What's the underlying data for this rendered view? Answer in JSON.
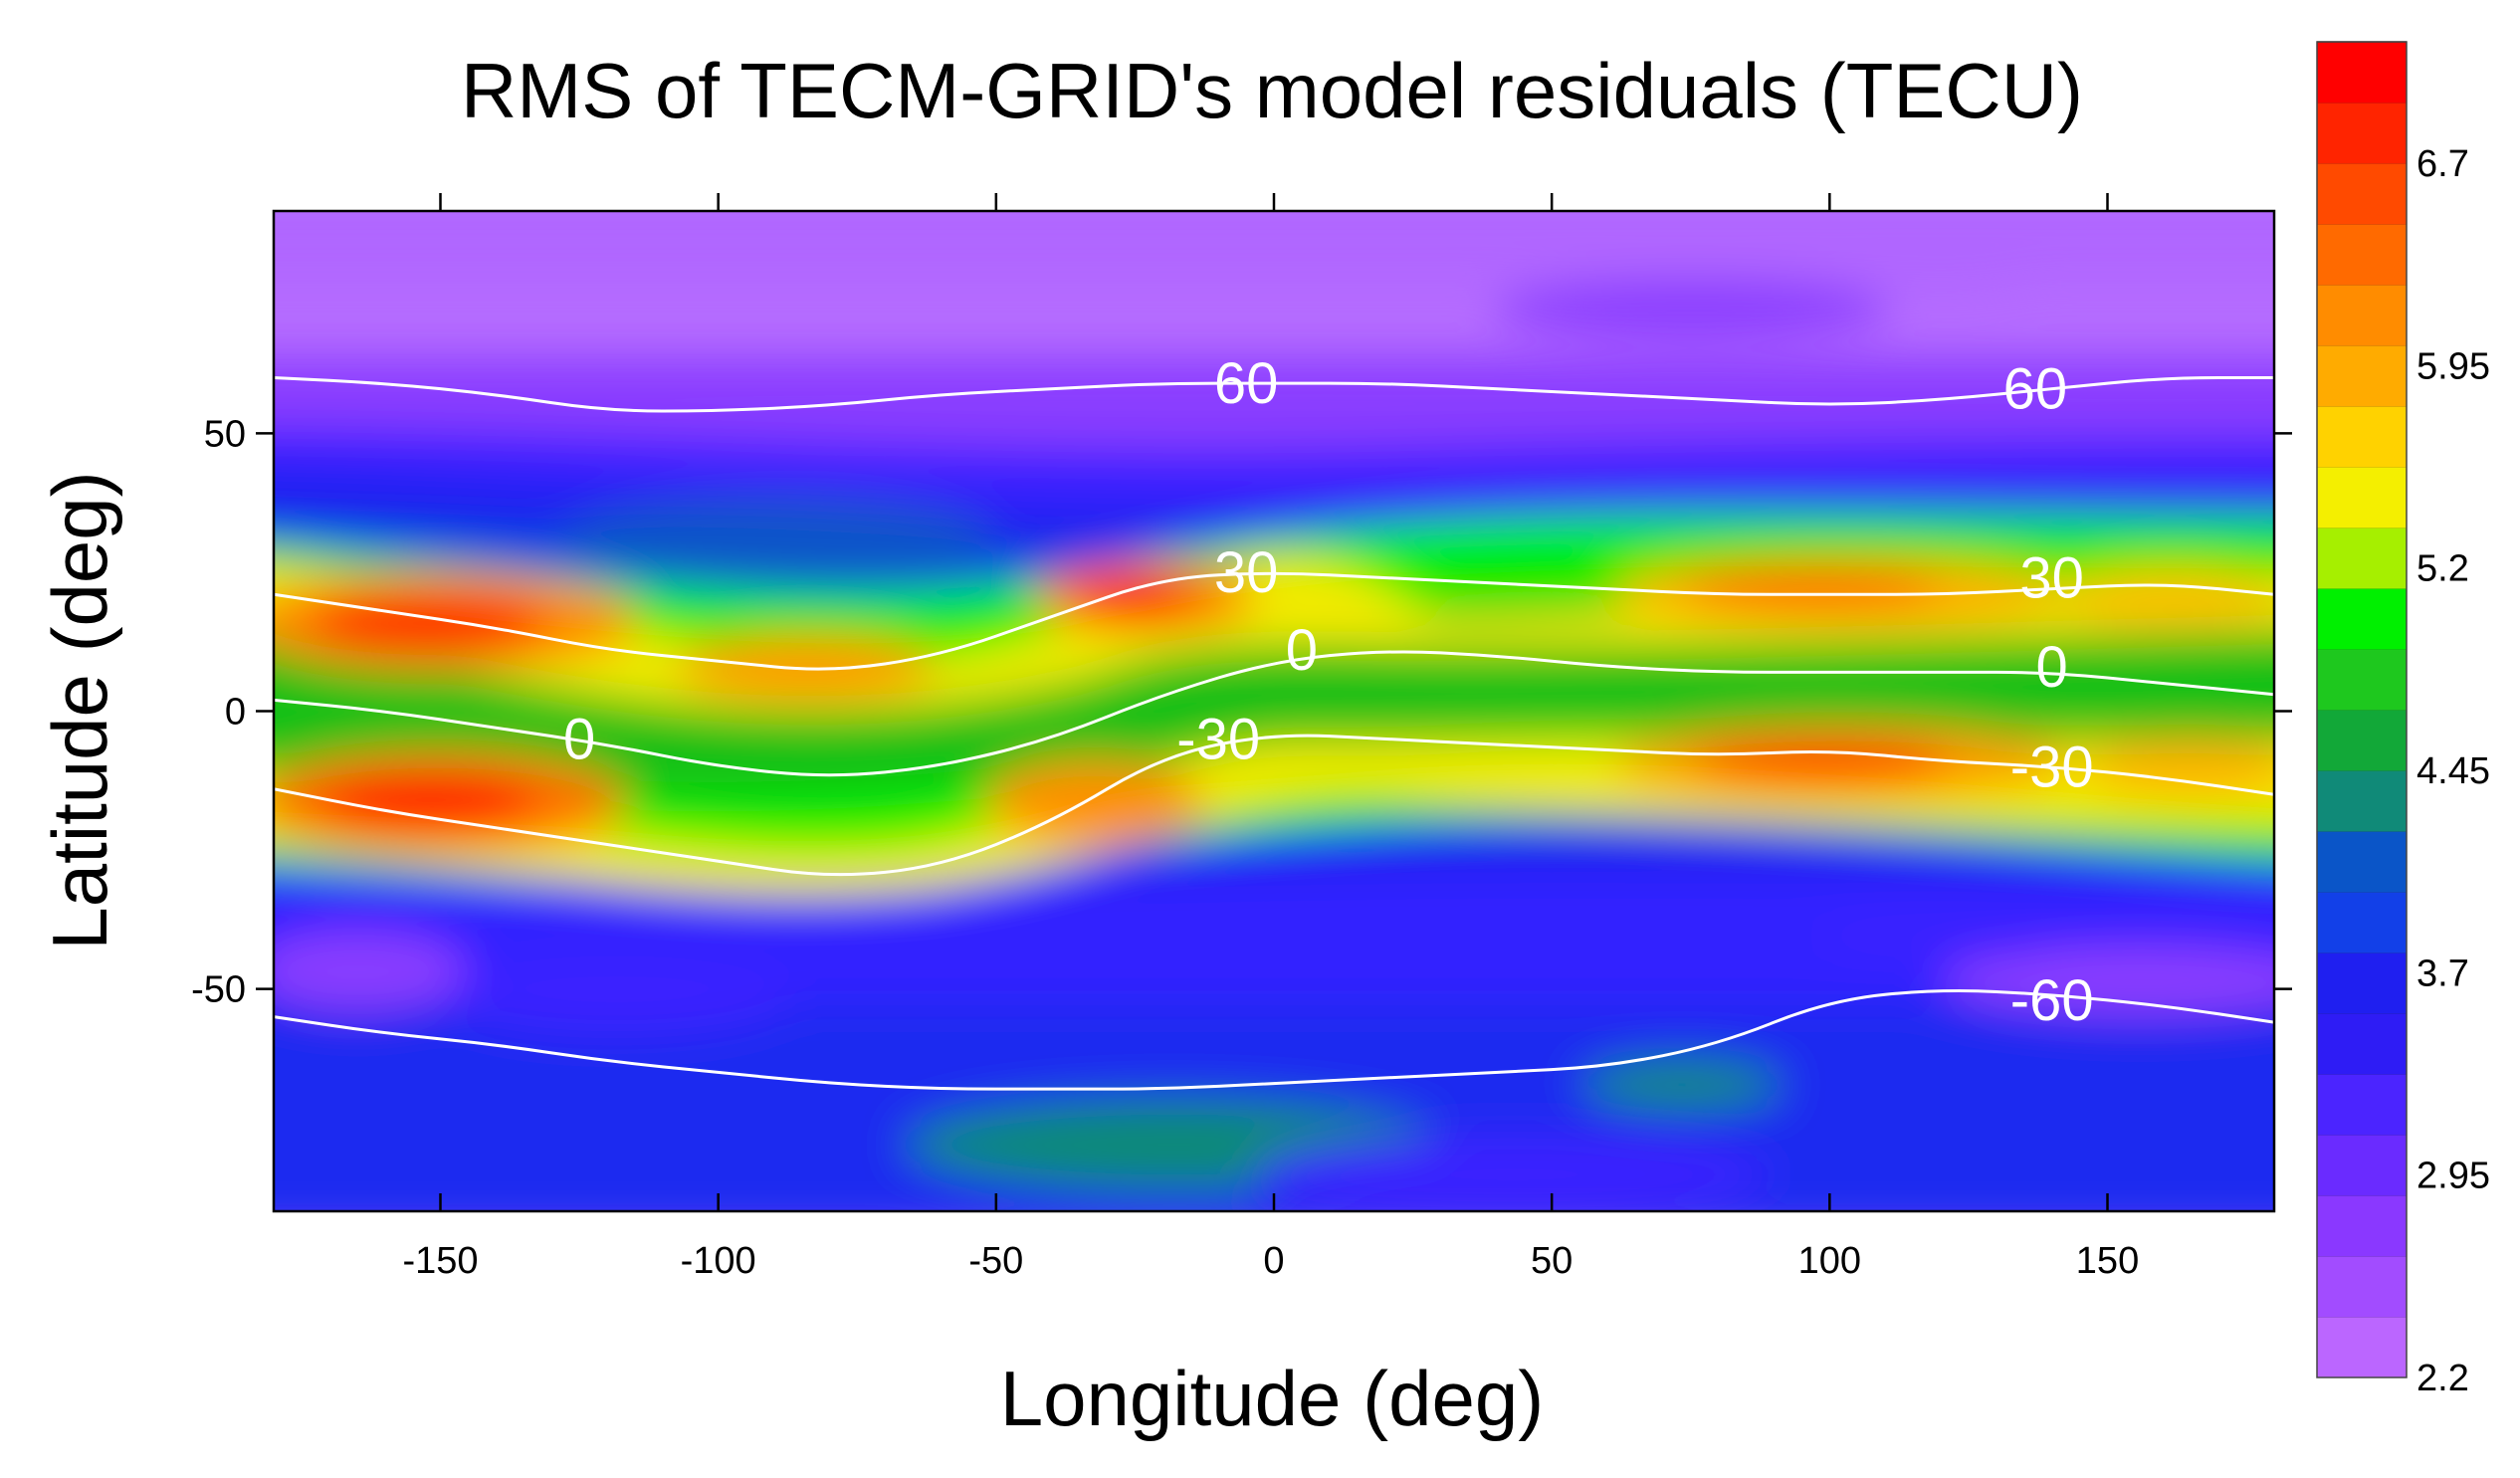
{
  "chart_data": {
    "type": "heatmap",
    "title": "RMS of TECM-GRID's model residuals (TECU)",
    "xlabel": "Longitude (deg)",
    "ylabel": "Latitude (deg)",
    "xlim": [
      -180,
      180
    ],
    "ylim": [
      -90,
      90
    ],
    "x_ticks": [
      {
        "value": -150,
        "label": "-150"
      },
      {
        "value": -100,
        "label": "-100"
      },
      {
        "value": -50,
        "label": "-50"
      },
      {
        "value": 0,
        "label": "0"
      },
      {
        "value": 50,
        "label": "50"
      },
      {
        "value": 100,
        "label": "100"
      },
      {
        "value": 150,
        "label": "150"
      }
    ],
    "y_ticks": [
      {
        "value": 50,
        "label": "50"
      },
      {
        "value": 0,
        "label": "0"
      },
      {
        "value": -50,
        "label": "-50"
      }
    ],
    "colorbar": {
      "min": 2.2,
      "max": 7.15,
      "colors": [
        "#bb66ff",
        "#a24cff",
        "#8a38ff",
        "#6a2bff",
        "#4b24ff",
        "#2e1cf5",
        "#1f1ff0",
        "#1240e8",
        "#0a55c8",
        "#108a78",
        "#12a838",
        "#1ec81e",
        "#00f000",
        "#a6ef00",
        "#f4ef00",
        "#ffd200",
        "#ffab00",
        "#ff8c00",
        "#ff6a00",
        "#ff4a00",
        "#ff2400",
        "#ff0000"
      ],
      "labels": [
        {
          "value": 6.7,
          "label": "6.7"
        },
        {
          "value": 5.95,
          "label": "5.95"
        },
        {
          "value": 5.2,
          "label": "5.2"
        },
        {
          "value": 4.45,
          "label": "4.45"
        },
        {
          "value": 3.7,
          "label": "3.7"
        },
        {
          "value": 2.95,
          "label": "2.95"
        },
        {
          "value": 2.2,
          "label": "2.2"
        }
      ]
    },
    "iso_lines": [
      {
        "label": "60",
        "points": [
          [
            -180,
            60
          ],
          [
            -160,
            59
          ],
          [
            -140,
            57
          ],
          [
            -120,
            54
          ],
          [
            -100,
            54
          ],
          [
            -80,
            55
          ],
          [
            -60,
            57
          ],
          [
            -40,
            58
          ],
          [
            -20,
            59
          ],
          [
            0,
            59
          ],
          [
            20,
            59
          ],
          [
            40,
            58
          ],
          [
            60,
            57
          ],
          [
            80,
            56
          ],
          [
            100,
            55
          ],
          [
            120,
            56
          ],
          [
            140,
            58
          ],
          [
            160,
            60
          ],
          [
            180,
            60
          ]
        ],
        "label_positions": [
          [
            -5,
            59
          ],
          [
            137,
            58
          ]
        ]
      },
      {
        "label": "30",
        "points": [
          [
            -180,
            21
          ],
          [
            -160,
            18
          ],
          [
            -140,
            15
          ],
          [
            -120,
            11
          ],
          [
            -100,
            9
          ],
          [
            -80,
            7
          ],
          [
            -60,
            10
          ],
          [
            -40,
            17
          ],
          [
            -20,
            24
          ],
          [
            0,
            25
          ],
          [
            20,
            24
          ],
          [
            40,
            23
          ],
          [
            60,
            22
          ],
          [
            80,
            21
          ],
          [
            100,
            21
          ],
          [
            120,
            21
          ],
          [
            140,
            22
          ],
          [
            160,
            23
          ],
          [
            180,
            21
          ]
        ],
        "label_positions": [
          [
            -5,
            25
          ],
          [
            140,
            24
          ]
        ]
      },
      {
        "label": "0",
        "points": [
          [
            -180,
            2
          ],
          [
            -160,
            0
          ],
          [
            -140,
            -3
          ],
          [
            -120,
            -6
          ],
          [
            -100,
            -10
          ],
          [
            -80,
            -12
          ],
          [
            -60,
            -10
          ],
          [
            -40,
            -5
          ],
          [
            -20,
            3
          ],
          [
            0,
            9
          ],
          [
            20,
            11
          ],
          [
            40,
            10
          ],
          [
            60,
            8
          ],
          [
            80,
            7
          ],
          [
            100,
            7
          ],
          [
            120,
            7
          ],
          [
            140,
            7
          ],
          [
            160,
            5
          ],
          [
            180,
            3
          ]
        ],
        "label_positions": [
          [
            -125,
            -5
          ],
          [
            5,
            11
          ],
          [
            140,
            8
          ]
        ]
      },
      {
        "label": "-30",
        "points": [
          [
            -180,
            -14
          ],
          [
            -160,
            -18
          ],
          [
            -140,
            -21
          ],
          [
            -120,
            -24
          ],
          [
            -100,
            -27
          ],
          [
            -80,
            -30
          ],
          [
            -60,
            -28
          ],
          [
            -40,
            -20
          ],
          [
            -20,
            -8
          ],
          [
            0,
            -4
          ],
          [
            20,
            -5
          ],
          [
            40,
            -6
          ],
          [
            60,
            -7
          ],
          [
            80,
            -8
          ],
          [
            100,
            -7
          ],
          [
            120,
            -9
          ],
          [
            140,
            -10
          ],
          [
            160,
            -12
          ],
          [
            180,
            -15
          ]
        ],
        "label_positions": [
          [
            -10,
            -5
          ],
          [
            140,
            -10
          ]
        ]
      },
      {
        "label": "-60",
        "points": [
          [
            -180,
            -55
          ],
          [
            -160,
            -58
          ],
          [
            -140,
            -60
          ],
          [
            -120,
            -63
          ],
          [
            -100,
            -65
          ],
          [
            -80,
            -67
          ],
          [
            -60,
            -68
          ],
          [
            -40,
            -68
          ],
          [
            -20,
            -68
          ],
          [
            0,
            -67
          ],
          [
            20,
            -66
          ],
          [
            40,
            -65
          ],
          [
            60,
            -64
          ],
          [
            80,
            -60
          ],
          [
            100,
            -52
          ],
          [
            120,
            -50
          ],
          [
            140,
            -51
          ],
          [
            160,
            -53
          ],
          [
            180,
            -56
          ]
        ],
        "label_positions": [
          [
            140,
            -52
          ]
        ]
      }
    ]
  }
}
